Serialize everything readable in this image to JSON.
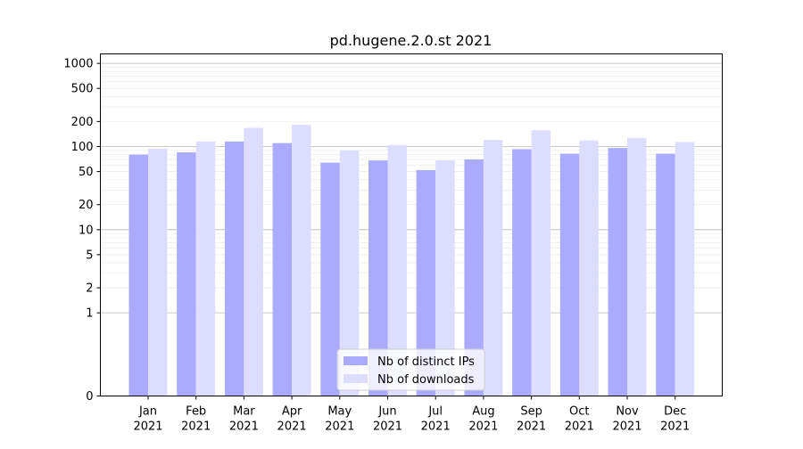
{
  "chart_data": {
    "type": "bar",
    "title": "pd.hugene.2.0.st 2021",
    "xlabel": "",
    "ylabel": "",
    "yscale": "symlog",
    "ylim": [
      0,
      1300
    ],
    "yticks": [
      0,
      1,
      2,
      5,
      10,
      20,
      50,
      100,
      200,
      500,
      1000
    ],
    "ytick_labels": [
      "0",
      "1",
      "2",
      "5",
      "10",
      "20",
      "50",
      "100",
      "200",
      "500",
      "1000"
    ],
    "grid": true,
    "legend_position": "bottom-center",
    "categories": [
      "Jan\n2021",
      "Feb\n2021",
      "Mar\n2021",
      "Apr\n2021",
      "May\n2021",
      "Jun\n2021",
      "Jul\n2021",
      "Aug\n2021",
      "Sep\n2021",
      "Oct\n2021",
      "Nov\n2021",
      "Dec\n2021"
    ],
    "series": [
      {
        "name": "Nb of distinct IPs",
        "color": "#aaaaff",
        "values": [
          80,
          85,
          115,
          110,
          64,
          68,
          52,
          70,
          93,
          82,
          96,
          82
        ]
      },
      {
        "name": "Nb of downloads",
        "color": "#ddddff",
        "values": [
          94,
          115,
          168,
          182,
          90,
          104,
          68,
          120,
          157,
          118,
          127,
          113
        ]
      }
    ]
  }
}
